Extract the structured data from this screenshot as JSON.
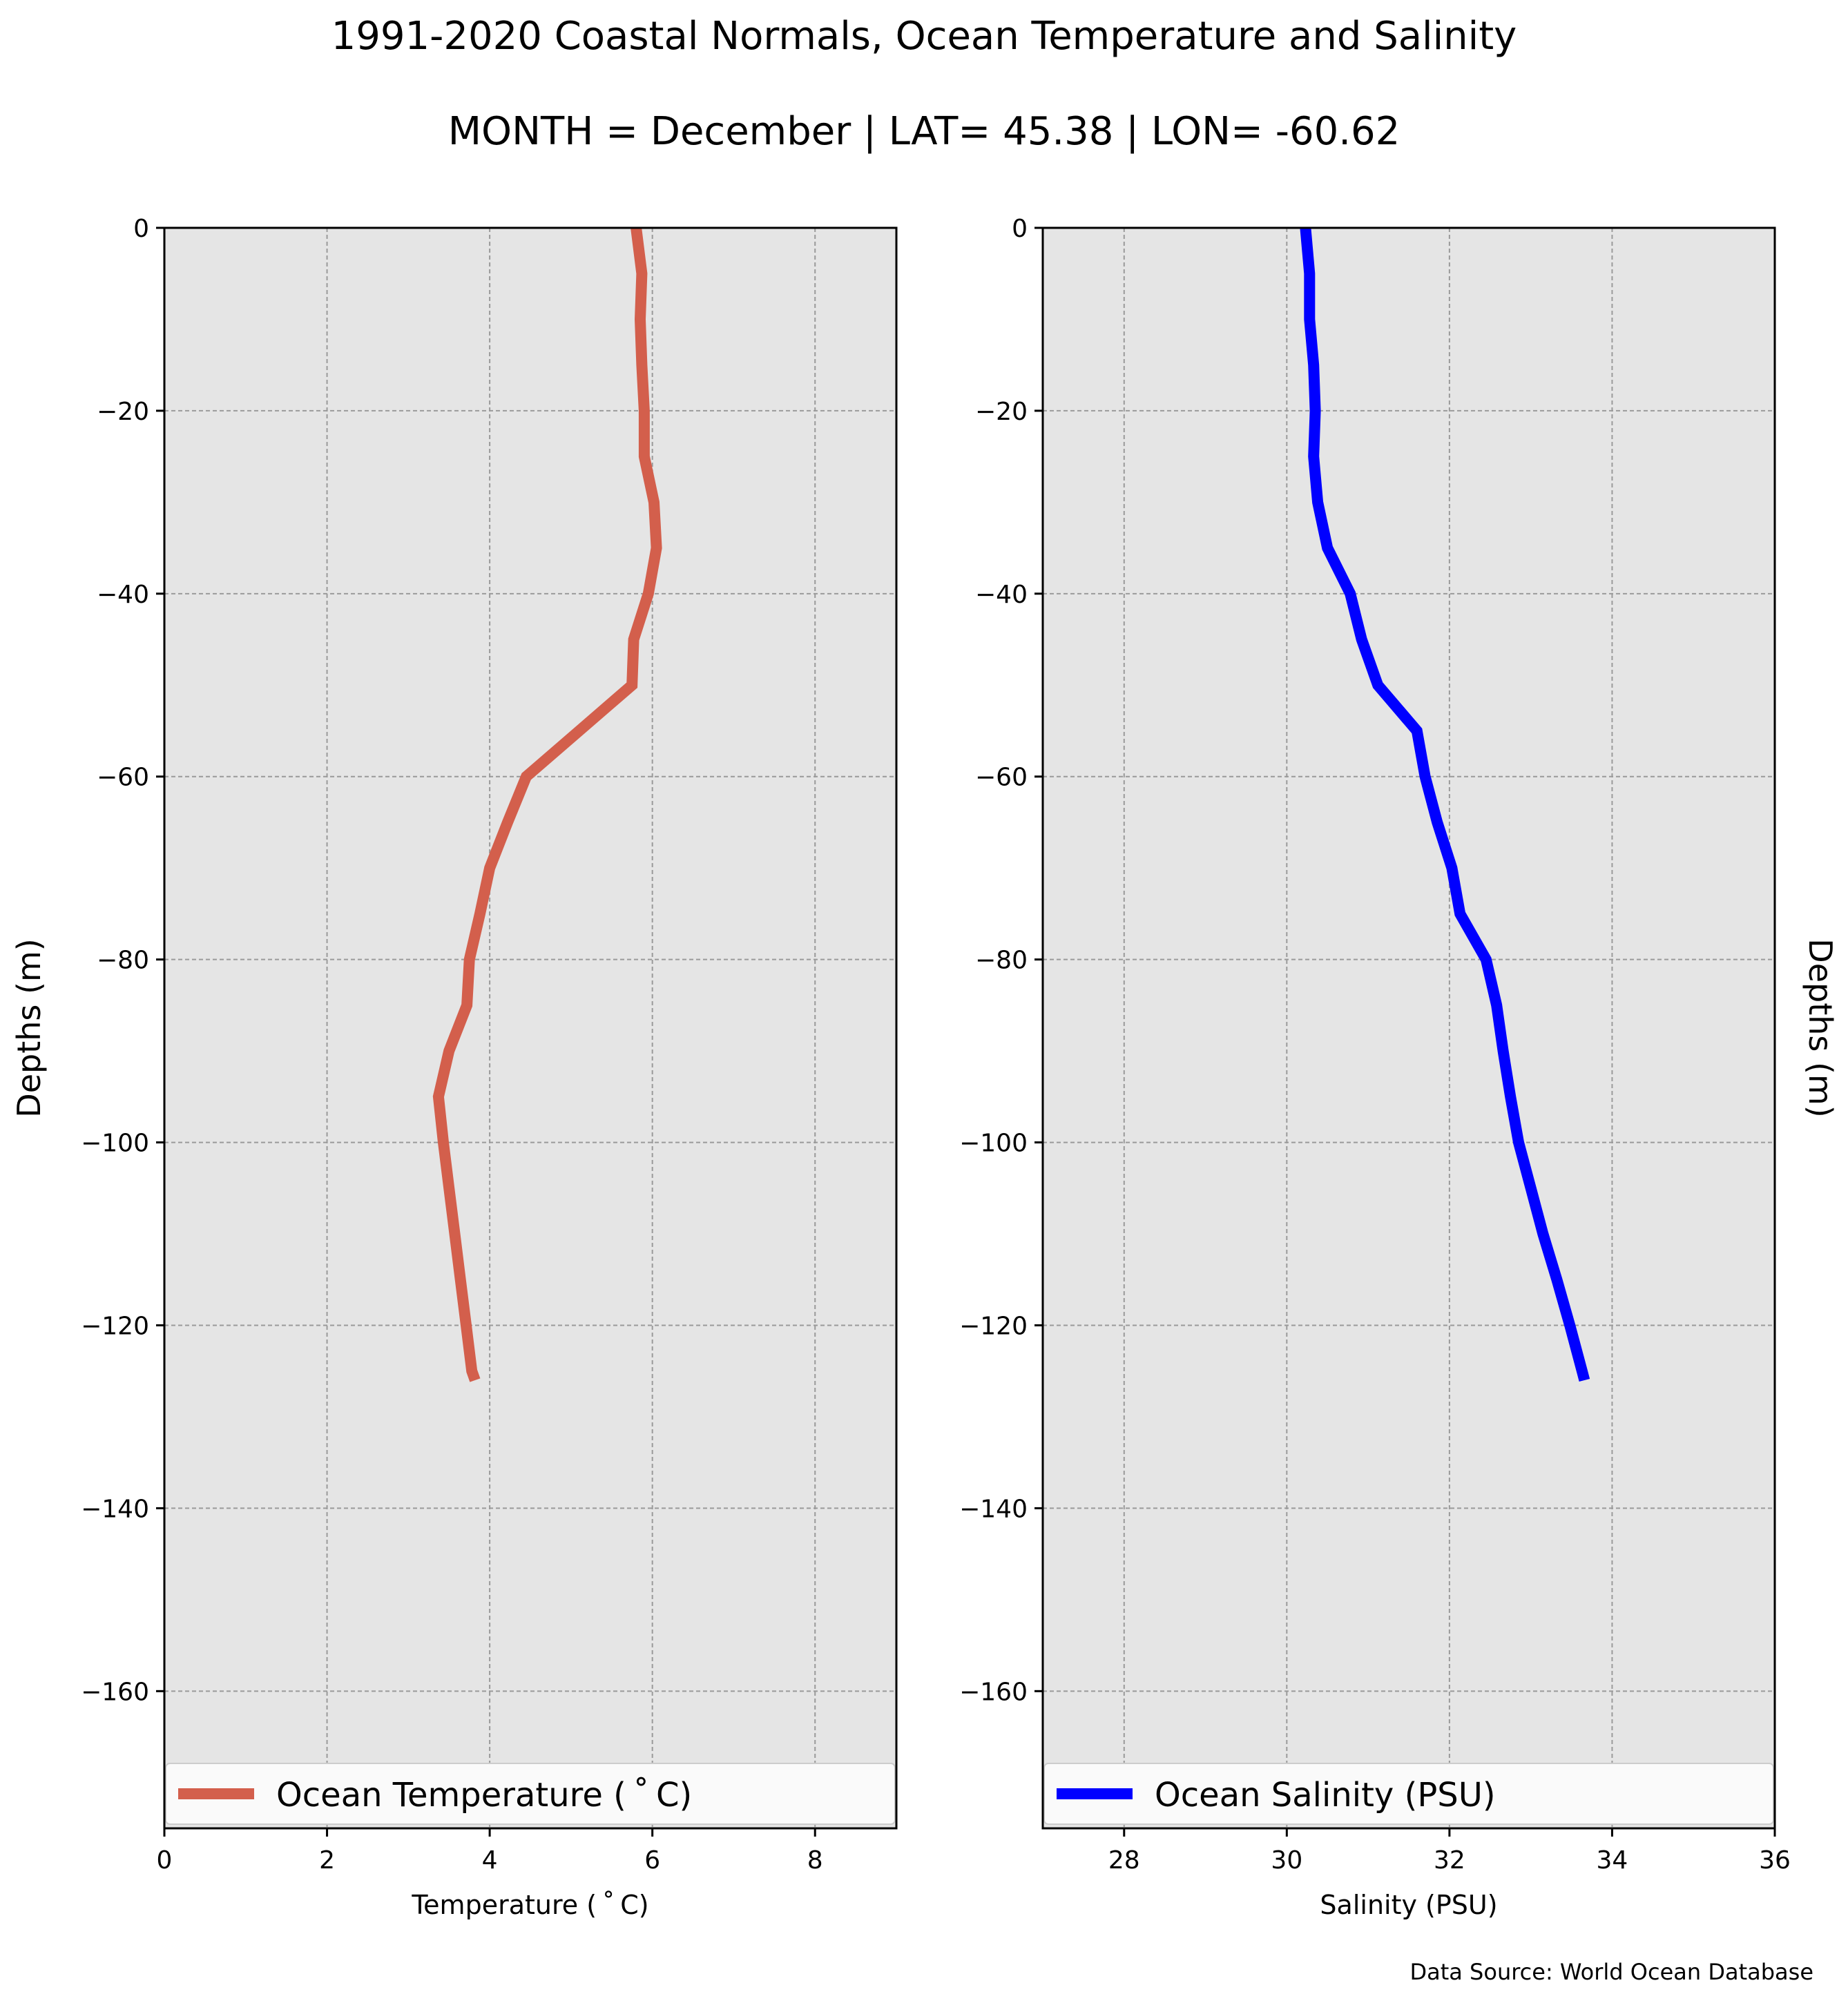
{
  "title": "1991-2020 Coastal Normals, Ocean Temperature and Salinity",
  "subtitle": "MONTH = December | LAT= 45.38 | LON= -60.62",
  "source": "Data Source: World Ocean Database",
  "chart_data": [
    {
      "type": "line",
      "xlabel": "Temperature ($^\\circ$C)",
      "xlabel_display": "Temperature ( ˚ C)",
      "ylabel": "Depths (m)",
      "xlim": [
        0,
        9
      ],
      "ylim": [
        -175,
        0
      ],
      "xticks": [
        0,
        2,
        4,
        6,
        8
      ],
      "yticks": [
        0,
        -20,
        -40,
        -60,
        -80,
        -100,
        -120,
        -140,
        -160
      ],
      "grid": true,
      "legend_position": "bottom",
      "series": [
        {
          "name": "Ocean Temperature ( ˚ C)",
          "color": "#d35f4c",
          "x": [
            5.8,
            5.87,
            5.85,
            5.87,
            5.9,
            5.9,
            6.02,
            6.05,
            5.95,
            5.77,
            5.75,
            5.1,
            4.45,
            4.22,
            4.0,
            3.88,
            3.75,
            3.72,
            3.5,
            3.37,
            3.43,
            3.5,
            3.57,
            3.64,
            3.71,
            3.78,
            3.82
          ],
          "y": [
            0,
            -5,
            -10,
            -15,
            -20,
            -25,
            -30,
            -35,
            -40,
            -45,
            -50,
            -55,
            -60,
            -65,
            -70,
            -75,
            -80,
            -85,
            -90,
            -95,
            -100,
            -105,
            -110,
            -115,
            -120,
            -125,
            -126
          ]
        }
      ]
    },
    {
      "type": "line",
      "xlabel": "Salinity (PSU)",
      "ylabel": "Depths (m)",
      "xlim": [
        27,
        36
      ],
      "ylim": [
        -175,
        0
      ],
      "xticks": [
        28,
        30,
        32,
        34,
        36
      ],
      "yticks": [
        0,
        -20,
        -40,
        -60,
        -80,
        -100,
        -120,
        -140,
        -160
      ],
      "grid": true,
      "legend_position": "bottom",
      "series": [
        {
          "name": "Ocean Salinity (PSU)",
          "color": "#0000ff",
          "x": [
            30.23,
            30.28,
            30.28,
            30.33,
            30.35,
            30.33,
            30.38,
            30.5,
            30.78,
            30.92,
            31.12,
            31.6,
            31.7,
            31.85,
            32.03,
            32.13,
            32.45,
            32.58,
            32.66,
            32.75,
            32.85,
            33.0,
            33.15,
            33.32,
            33.48,
            33.63,
            33.66
          ],
          "y": [
            0,
            -5,
            -10,
            -15,
            -20,
            -25,
            -30,
            -35,
            -40,
            -45,
            -50,
            -55,
            -60,
            -65,
            -70,
            -75,
            -80,
            -85,
            -90,
            -95,
            -100,
            -105,
            -110,
            -115,
            -120,
            -125,
            -126
          ]
        }
      ]
    }
  ]
}
